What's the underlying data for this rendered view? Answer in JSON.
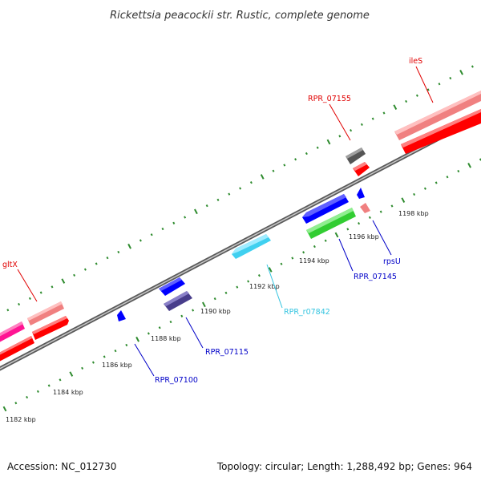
{
  "title": "Rickettsia peacockii str. Rustic, complete genome",
  "footer": {
    "accession": "Accession: NC_012730",
    "summary": "Topology: circular; Length: 1,288,492 bp; Genes: 964"
  },
  "colors": {
    "backbone": "#8c8c8c",
    "tick": "#2e8b2e",
    "label_red": "#e00000",
    "label_blue": "#0000c8",
    "label_cyan": "#33c4e0",
    "cds_red": "#ff0000",
    "cds_pink": "#f08080",
    "cds_magenta": "#ff1493",
    "cds_blue": "#0000ff",
    "cds_navy": "#483d8b",
    "cds_green": "#32cd32",
    "cds_cyan": "#40d0f0",
    "cds_gray": "#555555"
  },
  "ticks": [
    {
      "label": "1182 kbp"
    },
    {
      "label": "1184 kbp"
    },
    {
      "label": "1186 kbp"
    },
    {
      "label": "1188 kbp"
    },
    {
      "label": "1190 kbp"
    },
    {
      "label": "1192 kbp"
    },
    {
      "label": "1194 kbp"
    },
    {
      "label": "1196 kbp"
    },
    {
      "label": "1198 kbp"
    }
  ],
  "gene_labels": [
    {
      "name": "gltX",
      "color": "label_red"
    },
    {
      "name": "ileS",
      "color": "label_red"
    },
    {
      "name": "RPR_07155",
      "color": "label_red"
    },
    {
      "name": "rpsU",
      "color": "label_blue"
    },
    {
      "name": "RPR_07145",
      "color": "label_blue"
    },
    {
      "name": "RPR_r07842",
      "color": "label_cyan"
    },
    {
      "name": "RPR_07115",
      "color": "label_blue"
    },
    {
      "name": "RPR_07100",
      "color": "label_blue"
    }
  ]
}
